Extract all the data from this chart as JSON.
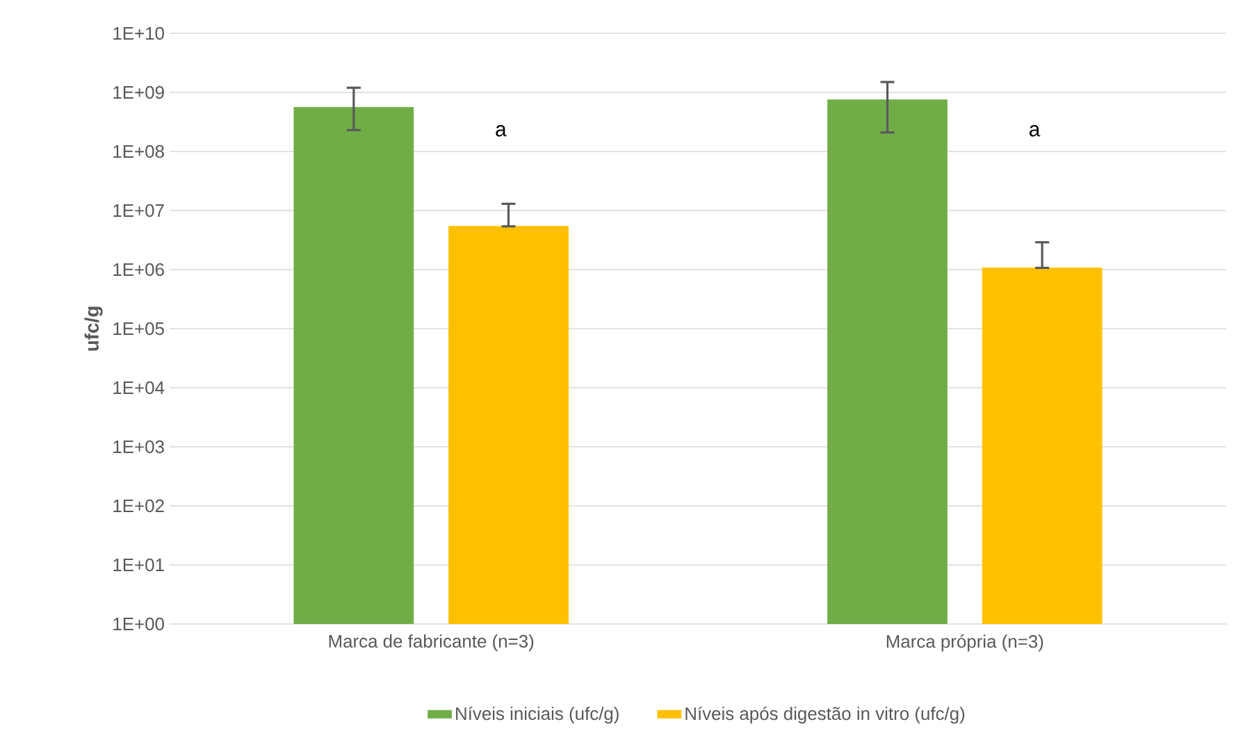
{
  "chart_data": {
    "type": "bar",
    "ylabel": "ufc/g",
    "log": "y",
    "grid": "y",
    "legend": "bottom",
    "categories": [
      "Marca de fabricante (n=3)",
      "Marca própria (n=3)"
    ],
    "ylim": [
      1,
      10000000000
    ],
    "yticks": [
      {
        "value": 1,
        "label": "1E+00"
      },
      {
        "value": 10,
        "label": "1E+01"
      },
      {
        "value": 100,
        "label": "1E+02"
      },
      {
        "value": 1000,
        "label": "1E+03"
      },
      {
        "value": 10000,
        "label": "1E+04"
      },
      {
        "value": 100000,
        "label": "1E+05"
      },
      {
        "value": 1000000,
        "label": "1E+06"
      },
      {
        "value": 10000000,
        "label": "1E+07"
      },
      {
        "value": 100000000,
        "label": "1E+08"
      },
      {
        "value": 1000000000,
        "label": "1E+09"
      },
      {
        "value": 10000000000,
        "label": "1E+10"
      }
    ],
    "series": [
      {
        "name": "Níveis iniciais  (ufc/g)",
        "color": "#70ad47",
        "values": [
          560000000,
          750000000
        ],
        "errors": [
          [
            230000000,
            1200000000
          ],
          [
            210000000,
            1500000000
          ]
        ]
      },
      {
        "name": "Níveis após digestão in vitro (ufc/g)",
        "color": "#ffc000",
        "values": [
          5400000,
          1070000
        ],
        "errors": [
          [
            5400000,
            13000000
          ],
          [
            1070000,
            2900000
          ]
        ]
      }
    ],
    "annotations": [
      "a",
      "a"
    ]
  }
}
